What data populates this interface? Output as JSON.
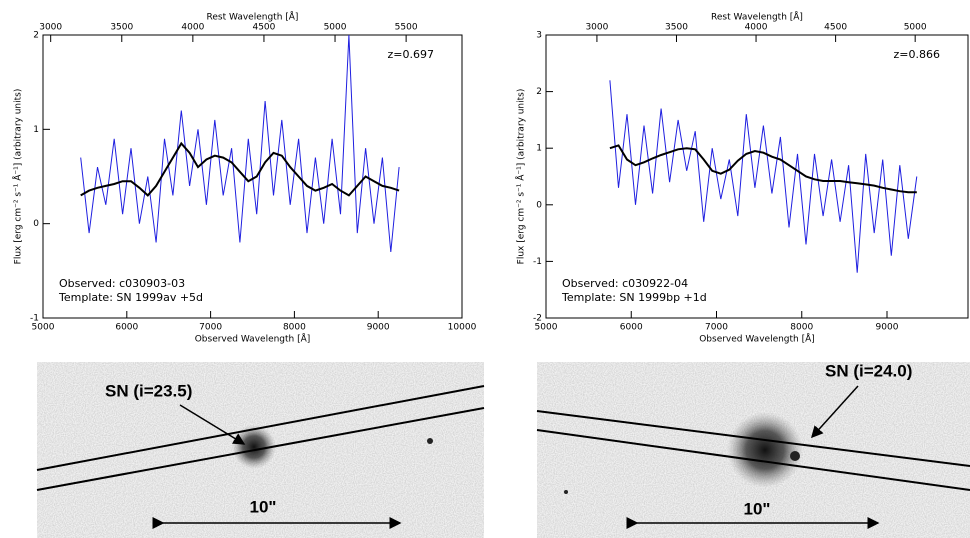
{
  "chart_data": [
    {
      "type": "line",
      "annotation": "z=0.697",
      "xlabel": "Observed Wavelength [Å]",
      "x2label": "Rest Wavelength [Å]",
      "ylabel": "Flux [erg cm⁻² s⁻¹ Å⁻¹]  (arbitrary units)",
      "xlim": [
        5000,
        10000
      ],
      "xticks": [
        5000,
        6000,
        7000,
        8000,
        9000,
        10000
      ],
      "x2lim": [
        2946,
        5893
      ],
      "x2ticks": [
        3000,
        3500,
        4000,
        4500,
        5000,
        5500
      ],
      "ylim": [
        -1,
        2
      ],
      "yticks": [
        -1,
        0,
        1,
        2
      ],
      "x": [
        5450,
        5550,
        5650,
        5750,
        5850,
        5950,
        6050,
        6150,
        6250,
        6350,
        6450,
        6550,
        6650,
        6750,
        6850,
        6950,
        7050,
        7150,
        7250,
        7350,
        7450,
        7550,
        7650,
        7750,
        7850,
        7950,
        8050,
        8150,
        8250,
        8350,
        8450,
        8550,
        8650,
        8750,
        8850,
        8950,
        9050,
        9150,
        9250
      ],
      "series": [
        {
          "name": "Observed:  c030903-03",
          "color": "#1f1fe0",
          "values": [
            0.7,
            -0.1,
            0.6,
            0.2,
            0.9,
            0.1,
            0.8,
            0.0,
            0.5,
            -0.2,
            0.9,
            0.3,
            1.2,
            0.4,
            1.0,
            0.2,
            1.1,
            0.3,
            0.8,
            -0.2,
            0.9,
            0.1,
            1.3,
            0.3,
            1.1,
            0.2,
            0.9,
            -0.1,
            0.7,
            0.0,
            0.9,
            0.1,
            2.0,
            -0.1,
            0.8,
            0.0,
            0.7,
            -0.3,
            0.6
          ]
        },
        {
          "name": "Template:  SN 1999av +5d",
          "color": "#000000",
          "values": [
            0.3,
            0.35,
            0.38,
            0.4,
            0.42,
            0.45,
            0.45,
            0.38,
            0.3,
            0.4,
            0.55,
            0.7,
            0.85,
            0.75,
            0.6,
            0.68,
            0.72,
            0.7,
            0.65,
            0.55,
            0.45,
            0.5,
            0.65,
            0.75,
            0.72,
            0.6,
            0.5,
            0.4,
            0.35,
            0.38,
            0.42,
            0.35,
            0.3,
            0.4,
            0.5,
            0.45,
            0.4,
            0.38,
            0.35
          ]
        }
      ]
    },
    {
      "type": "line",
      "annotation": "z=0.866",
      "xlabel": "Observed Wavelength [Å]",
      "x2label": "Rest Wavelength [Å]",
      "ylabel": "Flux [erg cm⁻² s⁻¹ Å⁻¹]  (arbitrary units)",
      "xlim": [
        5000,
        9950
      ],
      "xticks": [
        5000,
        6000,
        7000,
        8000,
        9000
      ],
      "x2lim": [
        2680,
        5332
      ],
      "x2ticks": [
        3000,
        3500,
        4000,
        4500,
        5000
      ],
      "ylim": [
        -2,
        3
      ],
      "yticks": [
        -2,
        -1,
        0,
        1,
        2,
        3
      ],
      "x": [
        5750,
        5850,
        5950,
        6050,
        6150,
        6250,
        6350,
        6450,
        6550,
        6650,
        6750,
        6850,
        6950,
        7050,
        7150,
        7250,
        7350,
        7450,
        7550,
        7650,
        7750,
        7850,
        7950,
        8050,
        8150,
        8250,
        8350,
        8450,
        8550,
        8650,
        8750,
        8850,
        8950,
        9050,
        9150,
        9250,
        9350
      ],
      "series": [
        {
          "name": "Observed:  c030922-04",
          "color": "#1f1fe0",
          "values": [
            2.2,
            0.3,
            1.6,
            0.0,
            1.4,
            0.2,
            1.7,
            0.4,
            1.5,
            0.6,
            1.3,
            -0.3,
            1.0,
            0.1,
            0.8,
            -0.2,
            1.6,
            0.3,
            1.4,
            0.2,
            1.2,
            -0.4,
            0.9,
            -0.7,
            0.9,
            -0.2,
            0.8,
            -0.3,
            0.7,
            -1.2,
            0.9,
            -0.5,
            0.8,
            -0.9,
            0.7,
            -0.6,
            0.5
          ]
        },
        {
          "name": "Template:  SN 1999bp +1d",
          "color": "#000000",
          "values": [
            1.0,
            1.05,
            0.8,
            0.7,
            0.75,
            0.82,
            0.88,
            0.93,
            0.98,
            1.0,
            0.98,
            0.8,
            0.6,
            0.55,
            0.62,
            0.78,
            0.9,
            0.95,
            0.92,
            0.85,
            0.8,
            0.7,
            0.6,
            0.5,
            0.45,
            0.42,
            0.42,
            0.42,
            0.4,
            0.38,
            0.36,
            0.34,
            0.3,
            0.27,
            0.24,
            0.22,
            0.22
          ]
        }
      ]
    }
  ],
  "images": [
    {
      "label": "SN (i=23.5)",
      "scale": "10\""
    },
    {
      "label": "SN (i=24.0)",
      "scale": "10\""
    }
  ]
}
